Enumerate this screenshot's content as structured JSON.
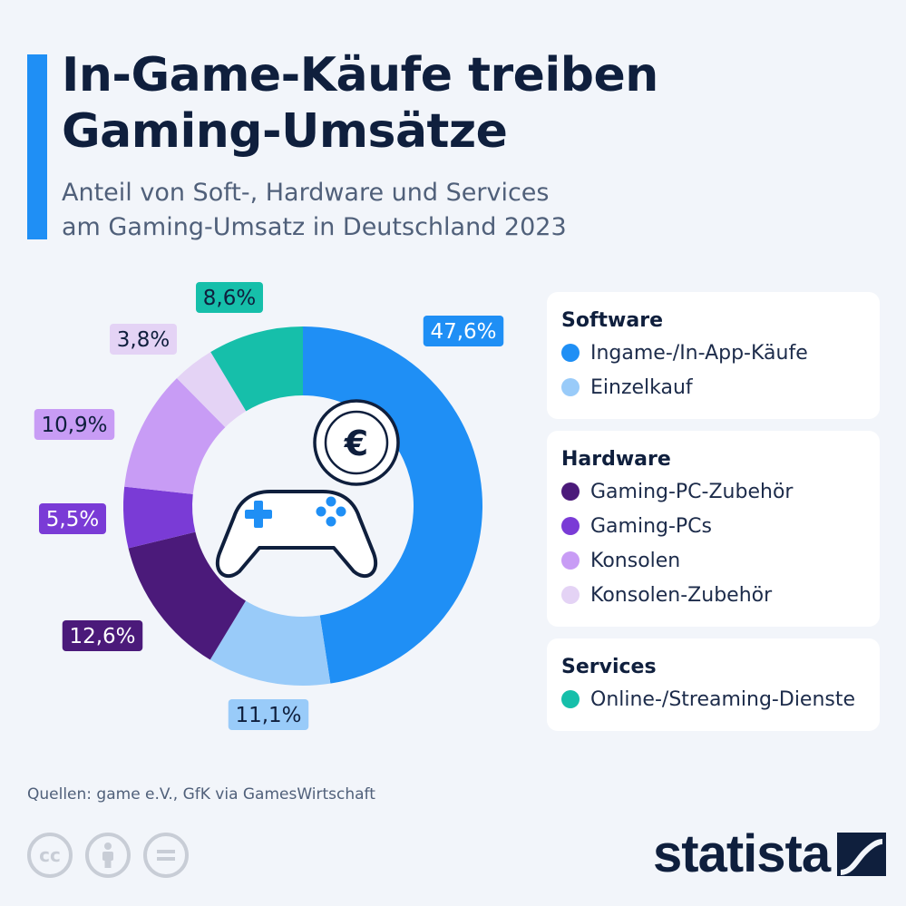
{
  "header": {
    "title_line1": "In-Game-Käufe treiben",
    "title_line2": "Gaming-Umsätze",
    "subtitle_line1": "Anteil von Soft-, Hardware und Services",
    "subtitle_line2": "am Gaming-Umsatz in Deutschland 2023"
  },
  "chart_data": {
    "type": "pie",
    "title": "In-Game-Käufe treiben Gaming-Umsätze",
    "subtitle": "Anteil von Soft-, Hardware und Services am Gaming-Umsatz in Deutschland 2023",
    "center_icon": "gamepad-euro-icon",
    "slices": [
      {
        "name": "Ingame-/In-App-Käufe",
        "value": 47.6,
        "label": "47,6%",
        "color": "#1f8ff5",
        "label_text_color": "#ffffff"
      },
      {
        "name": "Einzelkauf",
        "value": 11.1,
        "label": "11,1%",
        "color": "#99cbf9",
        "label_text_color": "#0f1f3d"
      },
      {
        "name": "Gaming-PC-Zubehör",
        "value": 12.6,
        "label": "12,6%",
        "color": "#4b1a7a",
        "label_text_color": "#ffffff"
      },
      {
        "name": "Gaming-PCs",
        "value": 5.5,
        "label": "5,5%",
        "color": "#7a3bd6",
        "label_text_color": "#ffffff"
      },
      {
        "name": "Konsolen",
        "value": 10.9,
        "label": "10,9%",
        "color": "#c89cf5",
        "label_text_color": "#0f1f3d"
      },
      {
        "name": "Konsolen-Zubehör",
        "value": 3.8,
        "label": "3,8%",
        "color": "#e4d3f5",
        "label_text_color": "#0f1f3d"
      },
      {
        "name": "Online-/Streaming-Dienste",
        "value": 8.6,
        "label": "8,6%",
        "color": "#16bfaa",
        "label_text_color": "#0f1f3d"
      }
    ],
    "legend": [
      {
        "group": "Software",
        "items": [
          "Ingame-/In-App-Käufe",
          "Einzelkauf"
        ]
      },
      {
        "group": "Hardware",
        "items": [
          "Gaming-PC-Zubehör",
          "Gaming-PCs",
          "Konsolen",
          "Konsolen-Zubehör"
        ]
      },
      {
        "group": "Services",
        "items": [
          "Online-/Streaming-Dienste"
        ]
      }
    ],
    "legend_placement": "right"
  },
  "legend": {
    "software": {
      "heading": "Software",
      "items": [
        {
          "label": "Ingame-/In-App-Käufe",
          "color": "#1f8ff5"
        },
        {
          "label": "Einzelkauf",
          "color": "#99cbf9"
        }
      ]
    },
    "hardware": {
      "heading": "Hardware",
      "items": [
        {
          "label": "Gaming-PC-Zubehör",
          "color": "#4b1a7a"
        },
        {
          "label": "Gaming-PCs",
          "color": "#7a3bd6"
        },
        {
          "label": "Konsolen",
          "color": "#c89cf5"
        },
        {
          "label": "Konsolen-Zubehör",
          "color": "#e4d3f5"
        }
      ]
    },
    "services": {
      "heading": "Services",
      "items": [
        {
          "label": "Online-/Streaming-Dienste",
          "color": "#16bfaa"
        }
      ]
    }
  },
  "footer": {
    "source": "Quellen: game e.V., GfK via GamesWirtschaft",
    "license_icons": [
      "cc-icon",
      "by-icon",
      "nd-icon"
    ],
    "brand": "statista",
    "brand_icon": "statista-logo-icon"
  }
}
